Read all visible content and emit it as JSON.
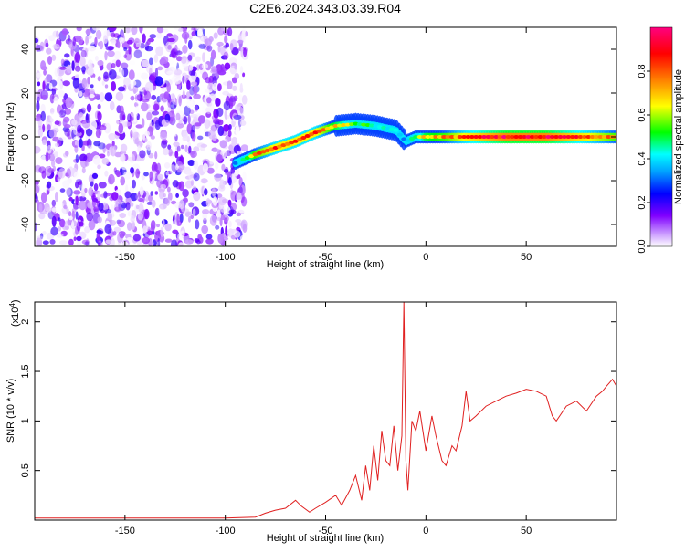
{
  "figure_title": "C2E6.2024.343.03.39.R04",
  "colors": {
    "snr_line": "#e02020",
    "spectrogram_noise": "#8a2be2",
    "frame": "#000000"
  },
  "chart_data": [
    {
      "type": "heatmap",
      "xlabel": "Height of straight line (km)",
      "ylabel": "Frequency (Hz)",
      "xlim": [
        -195,
        95
      ],
      "ylim": [
        -50,
        50
      ],
      "x_ticks": [
        -150,
        -100,
        -50,
        0,
        50
      ],
      "y_ticks": [
        -40,
        -20,
        0,
        20,
        40
      ],
      "colorbar": {
        "label": "Normalized spectral amplitude",
        "range": [
          0,
          1
        ],
        "ticks": [
          0.0,
          0.2,
          0.4,
          0.6,
          0.8
        ],
        "colors": [
          "#ffffff",
          "#c896ff",
          "#8000ff",
          "#0000ff",
          "#00a0ff",
          "#00ffff",
          "#00ff00",
          "#ffff00",
          "#ff8000",
          "#ff0000",
          "#ff0080"
        ]
      },
      "noise_region_x": [
        -195,
        -90
      ],
      "signal_ridge": {
        "x": [
          -95,
          -85,
          -75,
          -65,
          -55,
          -45,
          -35,
          -25,
          -15,
          -10,
          -5,
          0,
          10,
          20,
          40,
          60,
          80,
          95
        ],
        "freq": [
          -12,
          -8,
          -5,
          -2,
          2,
          5,
          6,
          5,
          3,
          -2,
          0,
          0,
          0,
          0,
          0,
          0,
          0,
          0
        ],
        "amplitude": [
          0.35,
          0.75,
          0.85,
          0.85,
          0.85,
          0.7,
          0.55,
          0.45,
          0.4,
          0.35,
          0.55,
          0.7,
          0.75,
          0.85,
          0.95,
          0.95,
          0.85,
          0.75
        ]
      }
    },
    {
      "type": "line",
      "xlabel": "Height of straight line (km)",
      "ylabel": "SNR (10 * v/v)",
      "y_multiplier": "(x10",
      "y_multiplier_exp": "4",
      "y_multiplier_close": ")",
      "xlim": [
        -195,
        95
      ],
      "ylim": [
        0,
        2.2
      ],
      "x_ticks": [
        -150,
        -100,
        -50,
        0,
        50
      ],
      "y_ticks": [
        0.5,
        1.0,
        1.5,
        2.0
      ],
      "series": [
        {
          "x": [
            -195,
            -150,
            -100,
            -85,
            -80,
            -75,
            -70,
            -65,
            -62,
            -58,
            -55,
            -50,
            -45,
            -42,
            -38,
            -35,
            -32,
            -30,
            -28,
            -26,
            -24,
            -22,
            -20,
            -18,
            -16,
            -14,
            -12,
            -11,
            -10,
            -9,
            -7,
            -5,
            -3,
            0,
            3,
            5,
            8,
            10,
            13,
            15,
            18,
            20,
            22,
            25,
            30,
            35,
            40,
            45,
            50,
            55,
            60,
            63,
            65,
            70,
            75,
            80,
            85,
            88,
            90,
            93,
            95
          ],
          "y": [
            0.02,
            0.02,
            0.02,
            0.03,
            0.07,
            0.1,
            0.12,
            0.2,
            0.14,
            0.08,
            0.12,
            0.18,
            0.25,
            0.15,
            0.3,
            0.45,
            0.2,
            0.55,
            0.3,
            0.75,
            0.4,
            0.9,
            0.6,
            0.55,
            0.95,
            0.5,
            0.85,
            2.2,
            0.6,
            0.3,
            1.0,
            0.9,
            1.1,
            0.7,
            1.05,
            0.85,
            0.6,
            0.55,
            0.75,
            0.7,
            0.95,
            1.3,
            1.0,
            1.05,
            1.15,
            1.2,
            1.25,
            1.28,
            1.32,
            1.3,
            1.25,
            1.05,
            1.0,
            1.15,
            1.2,
            1.1,
            1.25,
            1.3,
            1.35,
            1.42,
            1.35
          ]
        }
      ]
    }
  ]
}
